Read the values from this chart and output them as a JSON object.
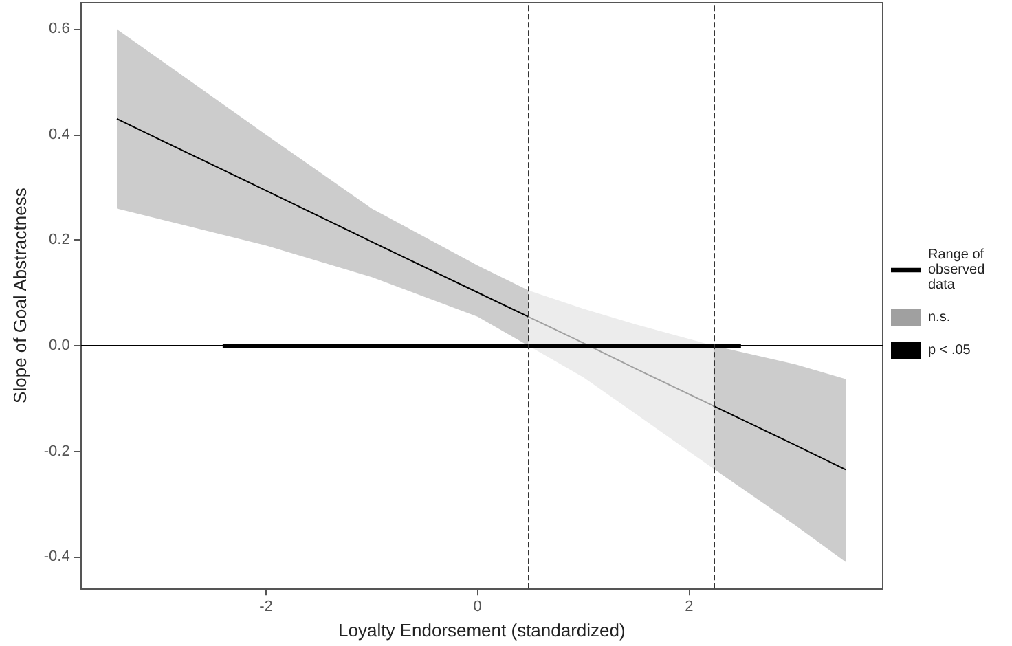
{
  "chart_data": {
    "type": "line",
    "xlabel": "Loyalty Endorsement (standardized)",
    "ylabel": "Slope of Goal Abstractness",
    "xlim": [
      -3.75,
      3.83
    ],
    "xticks": [
      -2,
      0,
      2
    ],
    "ylim": [
      -0.46,
      0.65
    ],
    "yticks": [
      -0.4,
      -0.2,
      {
        "value": 0,
        "label": "0.0"
      },
      0.2,
      0.4,
      0.6
    ],
    "grid": false,
    "legend": "right",
    "line_style": "solid",
    "marker": "none",
    "series": [
      {
        "name": "Range of observed data",
        "color": "#000000",
        "x": [
          -2.41,
          2.49
        ],
        "values": [
          0,
          0
        ]
      },
      {
        "color": "#000000",
        "x": [
          -3.41,
          -2,
          -1,
          0,
          0.48
        ],
        "values": [
          0.43,
          0.294,
          0.197,
          0.101,
          0.055
        ],
        "lower": [
          0.26,
          0.19,
          0.13,
          0.055,
          0.0
        ],
        "upper": [
          0.6,
          0.4,
          0.26,
          0.152,
          0.105
        ]
      },
      {
        "name": "n.s.",
        "color": "#a0a0a0",
        "x": [
          0.48,
          1,
          1.5,
          2.23
        ],
        "values": [
          0.055,
          0.005,
          -0.044,
          -0.114
        ],
        "lower": [
          0.0,
          -0.06,
          -0.13,
          -0.233
        ],
        "upper": [
          0.105,
          0.07,
          0.04,
          0.0
        ]
      },
      {
        "name": "p < .05",
        "color": "#000000",
        "x": [
          2.23,
          3,
          3.48
        ],
        "values": [
          -0.114,
          -0.188,
          -0.235
        ],
        "lower": [
          -0.233,
          -0.34,
          -0.41
        ],
        "upper": [
          0.0,
          -0.035,
          -0.063
        ]
      }
    ],
    "ref_lines": [
      {
        "axis": "y",
        "value": 0,
        "color": "#000000",
        "line_style": "solid"
      },
      {
        "axis": "x",
        "value": 0.48,
        "color": "#333333",
        "line_style": "dashed"
      },
      {
        "axis": "x",
        "value": 2.23,
        "color": "#333333",
        "line_style": "dashed"
      }
    ]
  }
}
